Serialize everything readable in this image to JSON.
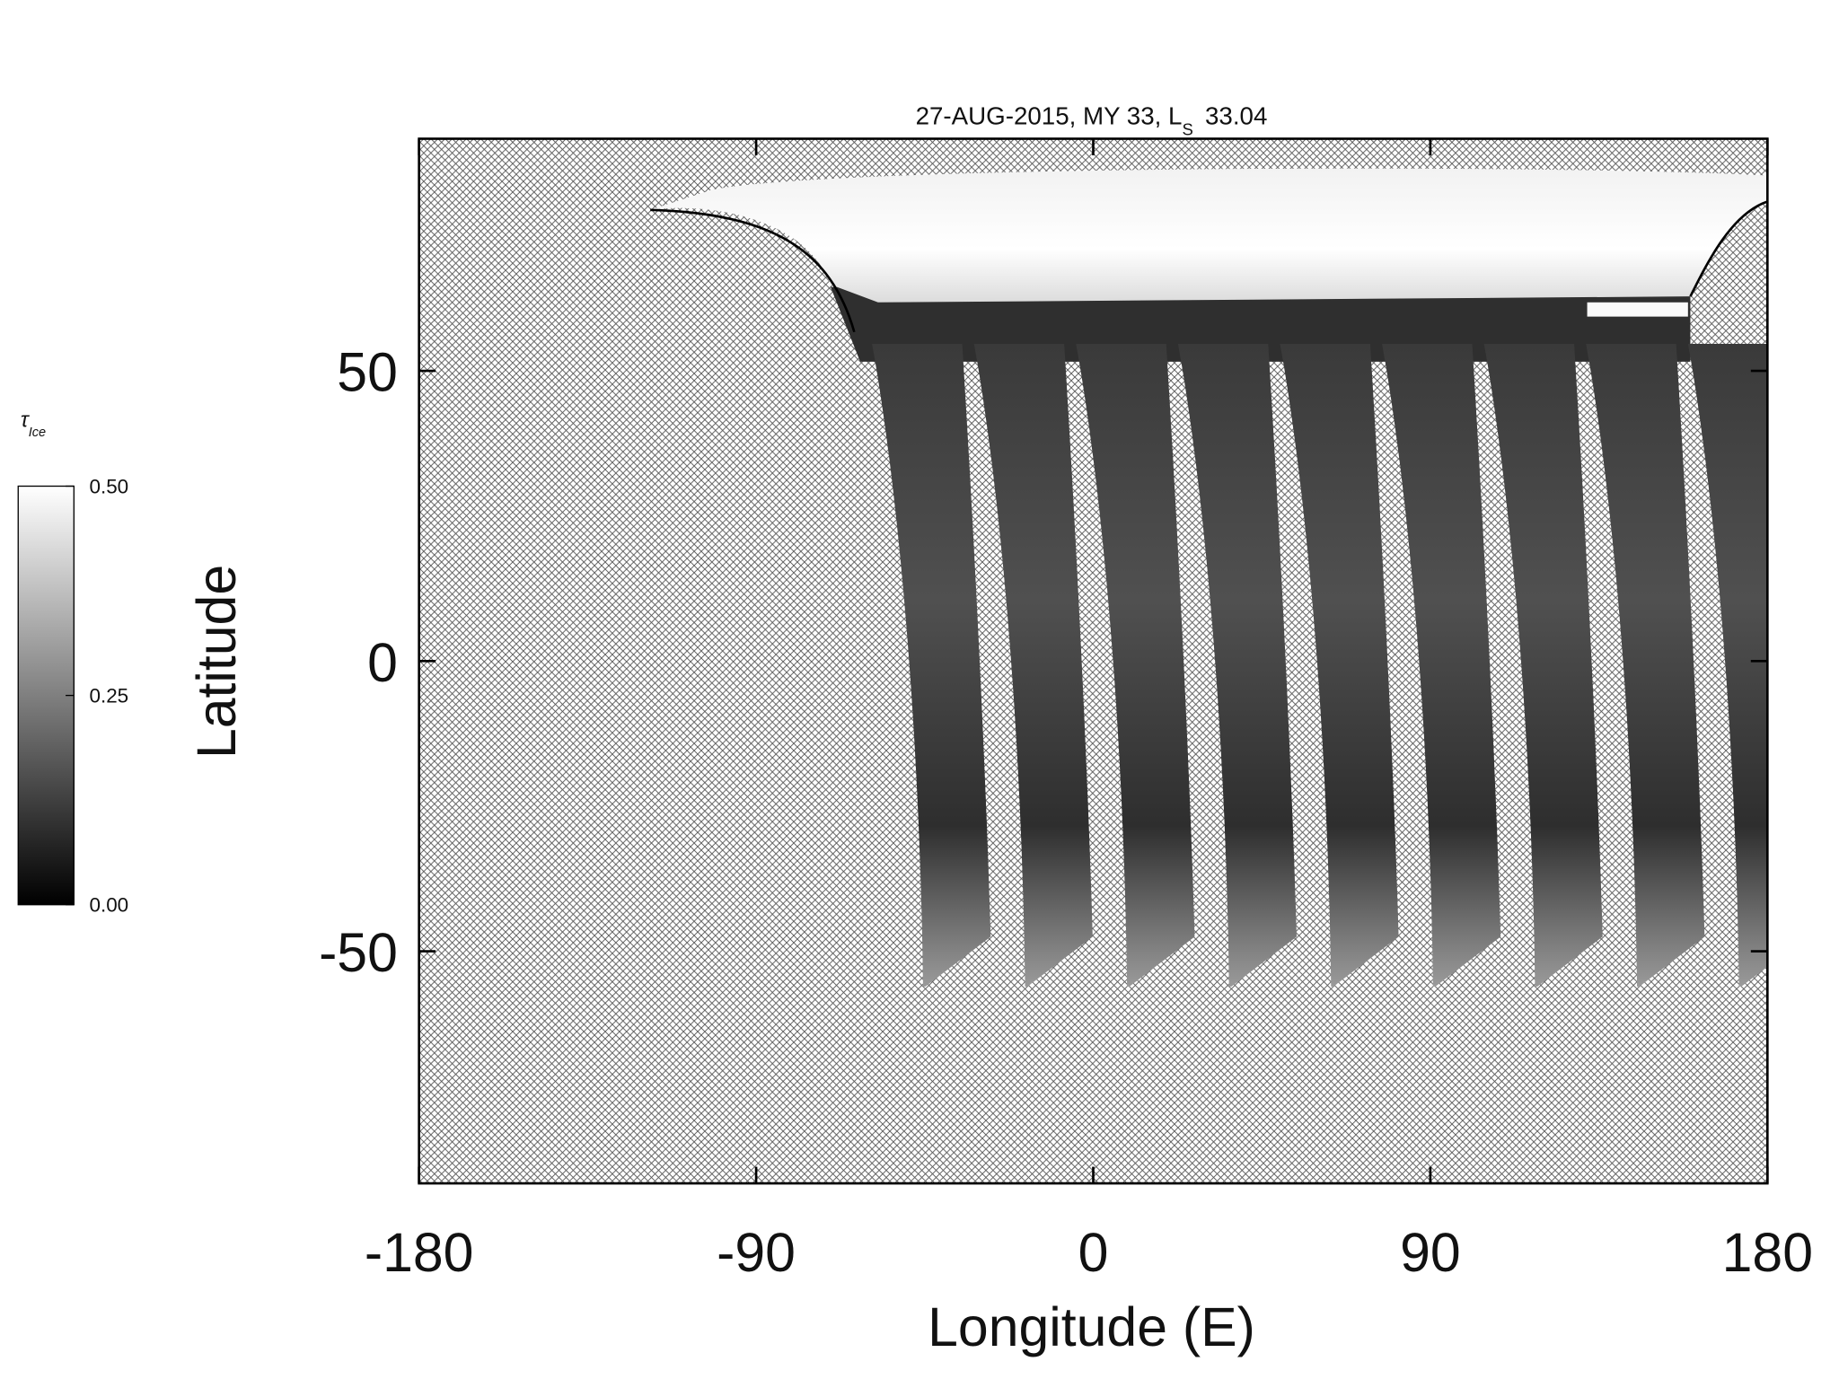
{
  "chart_data": {
    "type": "image",
    "title": {
      "text": "27-AUG-2015, MY 33,  L",
      "subscript": "S",
      "value": "33.04"
    },
    "x_label": "Longitude (E)",
    "y_label": "Latitude",
    "xlim": [
      -180,
      180
    ],
    "xticks": [
      -180,
      -90,
      0,
      90,
      180
    ],
    "ylim": [
      -90,
      90
    ],
    "yticks": [
      -50,
      0,
      50
    ],
    "colorbar": {
      "label": "τ",
      "label_subscript": "Ice",
      "lim": [
        0,
        0.5
      ],
      "ticks": [
        {
          "value": 0,
          "label": "0.00"
        },
        {
          "value": 0.25,
          "label": "0.25"
        },
        {
          "value": 0.5,
          "label": "0.50"
        }
      ],
      "colormap": [
        "#000000",
        "#ffffff"
      ]
    }
  }
}
